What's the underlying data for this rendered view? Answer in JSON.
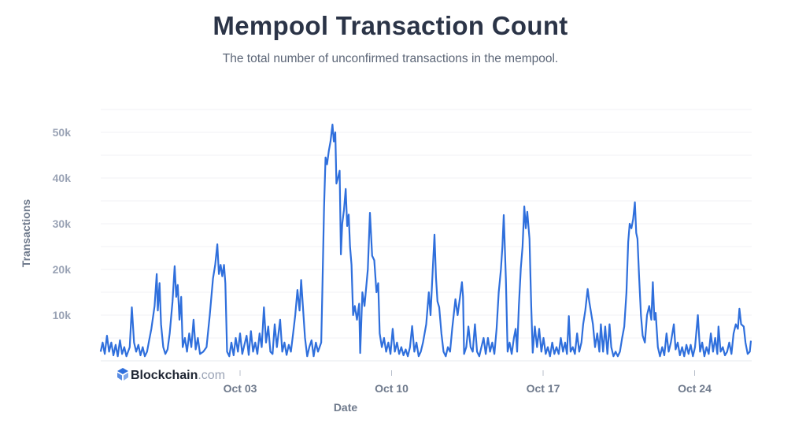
{
  "chart_data": {
    "type": "line",
    "title": "Mempool Transaction Count",
    "subtitle": "The total number of unconfirmed transactions in the mempool.",
    "xlabel": "Date",
    "ylabel": "Transactions",
    "x_unit": "day of October (Sep 30 = 0)",
    "y_multiplier": 1000,
    "ylim": [
      0,
      55000
    ],
    "grid": true,
    "yticks": [
      {
        "value": 10000,
        "label": "10k"
      },
      {
        "value": 20000,
        "label": "20k"
      },
      {
        "value": 30000,
        "label": "30k"
      },
      {
        "value": 40000,
        "label": "40k"
      },
      {
        "value": 50000,
        "label": "50k"
      }
    ],
    "xticks": [
      {
        "value": 3,
        "label": "Oct 03"
      },
      {
        "value": 10,
        "label": "Oct 10"
      },
      {
        "value": 17,
        "label": "Oct 17"
      },
      {
        "value": 24,
        "label": "Oct 24"
      }
    ],
    "series_color": "#2f6fdc",
    "watermark": {
      "brand": "Blockchain",
      "suffix": ".com"
    },
    "points": [
      [
        -3.44,
        2
      ],
      [
        -3.35,
        4
      ],
      [
        -3.25,
        1.5
      ],
      [
        -3.15,
        5.5
      ],
      [
        -3.05,
        2
      ],
      [
        -2.95,
        4
      ],
      [
        -2.85,
        1.2
      ],
      [
        -2.75,
        3.5
      ],
      [
        -2.65,
        1
      ],
      [
        -2.55,
        4.5
      ],
      [
        -2.45,
        1.5
      ],
      [
        -2.35,
        3
      ],
      [
        -2.25,
        1
      ],
      [
        -2.1,
        3
      ],
      [
        -2.0,
        11.7
      ],
      [
        -1.9,
        4
      ],
      [
        -1.8,
        2
      ],
      [
        -1.7,
        3.5
      ],
      [
        -1.6,
        1.2
      ],
      [
        -1.5,
        3
      ],
      [
        -1.4,
        1
      ],
      [
        -1.3,
        2
      ],
      [
        -1.2,
        4.5
      ],
      [
        -1.1,
        7
      ],
      [
        -0.95,
        12
      ],
      [
        -0.85,
        19
      ],
      [
        -0.8,
        11
      ],
      [
        -0.72,
        17
      ],
      [
        -0.65,
        8
      ],
      [
        -0.55,
        3
      ],
      [
        -0.45,
        1.5
      ],
      [
        -0.35,
        2.5
      ],
      [
        -0.25,
        6
      ],
      [
        -0.12,
        13
      ],
      [
        -0.02,
        20.7
      ],
      [
        0.05,
        14
      ],
      [
        0.12,
        16.6
      ],
      [
        0.2,
        9
      ],
      [
        0.28,
        14
      ],
      [
        0.35,
        3
      ],
      [
        0.45,
        5
      ],
      [
        0.55,
        2
      ],
      [
        0.65,
        6
      ],
      [
        0.75,
        3
      ],
      [
        0.85,
        9
      ],
      [
        0.95,
        2.5
      ],
      [
        1.05,
        5
      ],
      [
        1.15,
        1.5
      ],
      [
        1.3,
        2
      ],
      [
        1.45,
        3
      ],
      [
        1.6,
        10
      ],
      [
        1.75,
        18
      ],
      [
        1.85,
        21
      ],
      [
        1.95,
        25.5
      ],
      [
        2.02,
        19
      ],
      [
        2.1,
        21
      ],
      [
        2.18,
        18.5
      ],
      [
        2.26,
        21
      ],
      [
        2.32,
        17
      ],
      [
        2.4,
        2
      ],
      [
        2.5,
        1
      ],
      [
        2.6,
        4
      ],
      [
        2.7,
        1.2
      ],
      [
        2.8,
        5
      ],
      [
        2.9,
        2
      ],
      [
        3.0,
        6
      ],
      [
        3.1,
        1.5
      ],
      [
        3.2,
        3.5
      ],
      [
        3.3,
        5.5
      ],
      [
        3.4,
        1.3
      ],
      [
        3.5,
        6.5
      ],
      [
        3.6,
        2
      ],
      [
        3.7,
        4
      ],
      [
        3.8,
        1.5
      ],
      [
        3.9,
        6
      ],
      [
        4.0,
        3
      ],
      [
        4.1,
        11.7
      ],
      [
        4.2,
        4
      ],
      [
        4.3,
        7.5
      ],
      [
        4.4,
        2
      ],
      [
        4.5,
        1.5
      ],
      [
        4.6,
        8
      ],
      [
        4.7,
        3
      ],
      [
        4.85,
        9
      ],
      [
        4.95,
        2
      ],
      [
        5.05,
        4
      ],
      [
        5.15,
        1.3
      ],
      [
        5.25,
        3.5
      ],
      [
        5.35,
        2
      ],
      [
        5.45,
        6
      ],
      [
        5.55,
        10
      ],
      [
        5.65,
        15.5
      ],
      [
        5.75,
        11
      ],
      [
        5.82,
        17.7
      ],
      [
        5.9,
        12
      ],
      [
        6.0,
        5
      ],
      [
        6.1,
        1
      ],
      [
        6.2,
        3
      ],
      [
        6.3,
        4.5
      ],
      [
        6.4,
        1
      ],
      [
        6.5,
        4
      ],
      [
        6.6,
        2
      ],
      [
        6.75,
        4
      ],
      [
        6.8,
        15
      ],
      [
        6.88,
        33.6
      ],
      [
        6.95,
        44.5
      ],
      [
        7.02,
        43
      ],
      [
        7.1,
        46
      ],
      [
        7.18,
        48
      ],
      [
        7.27,
        51.7
      ],
      [
        7.33,
        48
      ],
      [
        7.4,
        50
      ],
      [
        7.45,
        38.8
      ],
      [
        7.52,
        40
      ],
      [
        7.6,
        41.6
      ],
      [
        7.66,
        23.3
      ],
      [
        7.72,
        30
      ],
      [
        7.8,
        33
      ],
      [
        7.88,
        37.6
      ],
      [
        7.95,
        29.5
      ],
      [
        8.02,
        32
      ],
      [
        8.08,
        25
      ],
      [
        8.15,
        21
      ],
      [
        8.22,
        10
      ],
      [
        8.3,
        12
      ],
      [
        8.4,
        9
      ],
      [
        8.5,
        12.5
      ],
      [
        8.55,
        1.7
      ],
      [
        8.65,
        15
      ],
      [
        8.75,
        12
      ],
      [
        8.9,
        20
      ],
      [
        9.0,
        32.4
      ],
      [
        9.1,
        23
      ],
      [
        9.2,
        22
      ],
      [
        9.3,
        15
      ],
      [
        9.38,
        17
      ],
      [
        9.45,
        6
      ],
      [
        9.55,
        3
      ],
      [
        9.65,
        5
      ],
      [
        9.75,
        2
      ],
      [
        9.85,
        4
      ],
      [
        9.95,
        1.5
      ],
      [
        10.05,
        7
      ],
      [
        10.15,
        2
      ],
      [
        10.25,
        4
      ],
      [
        10.35,
        1.5
      ],
      [
        10.45,
        3
      ],
      [
        10.55,
        1.2
      ],
      [
        10.65,
        2.5
      ],
      [
        10.75,
        1
      ],
      [
        10.85,
        3
      ],
      [
        10.95,
        7.6
      ],
      [
        11.05,
        2
      ],
      [
        11.15,
        4
      ],
      [
        11.25,
        1
      ],
      [
        11.35,
        2
      ],
      [
        11.45,
        4
      ],
      [
        11.6,
        8
      ],
      [
        11.72,
        15
      ],
      [
        11.8,
        10
      ],
      [
        11.9,
        20
      ],
      [
        11.98,
        27.6
      ],
      [
        12.05,
        18.3
      ],
      [
        12.12,
        13
      ],
      [
        12.2,
        11.7
      ],
      [
        12.3,
        6
      ],
      [
        12.4,
        2
      ],
      [
        12.5,
        1
      ],
      [
        12.6,
        3
      ],
      [
        12.7,
        2
      ],
      [
        12.8,
        7
      ],
      [
        12.95,
        13.5
      ],
      [
        13.05,
        10
      ],
      [
        13.25,
        17.2
      ],
      [
        13.3,
        14
      ],
      [
        13.35,
        1.5
      ],
      [
        13.45,
        3
      ],
      [
        13.55,
        7.5
      ],
      [
        13.65,
        3
      ],
      [
        13.75,
        2
      ],
      [
        13.85,
        8
      ],
      [
        13.95,
        2
      ],
      [
        14.05,
        1
      ],
      [
        14.15,
        3
      ],
      [
        14.25,
        5
      ],
      [
        14.35,
        1.5
      ],
      [
        14.45,
        5
      ],
      [
        14.55,
        2
      ],
      [
        14.65,
        4
      ],
      [
        14.75,
        1.5
      ],
      [
        14.85,
        7
      ],
      [
        14.95,
        15
      ],
      [
        15.05,
        20
      ],
      [
        15.12,
        25
      ],
      [
        15.18,
        31.9
      ],
      [
        15.28,
        18
      ],
      [
        15.36,
        2
      ],
      [
        15.45,
        4
      ],
      [
        15.55,
        1.5
      ],
      [
        15.65,
        5
      ],
      [
        15.73,
        7
      ],
      [
        15.8,
        2
      ],
      [
        15.88,
        12
      ],
      [
        15.97,
        20.3
      ],
      [
        16.05,
        25
      ],
      [
        16.13,
        33.8
      ],
      [
        16.2,
        29
      ],
      [
        16.27,
        32.6
      ],
      [
        16.33,
        29
      ],
      [
        16.37,
        26.7
      ],
      [
        16.45,
        12
      ],
      [
        16.52,
        1.8
      ],
      [
        16.62,
        7.5
      ],
      [
        16.72,
        3
      ],
      [
        16.82,
        7
      ],
      [
        16.92,
        2
      ],
      [
        17.02,
        5
      ],
      [
        17.12,
        1.5
      ],
      [
        17.22,
        3
      ],
      [
        17.32,
        1
      ],
      [
        17.42,
        4
      ],
      [
        17.52,
        1.5
      ],
      [
        17.62,
        3
      ],
      [
        17.72,
        1.5
      ],
      [
        17.82,
        5
      ],
      [
        17.92,
        2
      ],
      [
        18.02,
        4
      ],
      [
        18.1,
        1.5
      ],
      [
        18.19,
        9.8
      ],
      [
        18.27,
        2
      ],
      [
        18.37,
        3
      ],
      [
        18.47,
        1.5
      ],
      [
        18.57,
        6
      ],
      [
        18.67,
        2
      ],
      [
        18.77,
        4
      ],
      [
        18.85,
        8
      ],
      [
        18.95,
        11
      ],
      [
        19.06,
        15.7
      ],
      [
        19.13,
        13
      ],
      [
        19.2,
        11
      ],
      [
        19.3,
        8
      ],
      [
        19.4,
        3
      ],
      [
        19.5,
        6
      ],
      [
        19.6,
        2
      ],
      [
        19.67,
        8
      ],
      [
        19.77,
        2
      ],
      [
        19.87,
        7.5
      ],
      [
        19.97,
        1.5
      ],
      [
        20.07,
        8
      ],
      [
        20.15,
        3
      ],
      [
        20.25,
        1
      ],
      [
        20.35,
        2
      ],
      [
        20.45,
        1
      ],
      [
        20.55,
        2
      ],
      [
        20.65,
        5
      ],
      [
        20.75,
        7.5
      ],
      [
        20.85,
        15
      ],
      [
        20.93,
        26
      ],
      [
        21.0,
        30
      ],
      [
        21.08,
        29
      ],
      [
        21.16,
        31
      ],
      [
        21.24,
        34.7
      ],
      [
        21.3,
        28
      ],
      [
        21.36,
        26.7
      ],
      [
        21.43,
        19
      ],
      [
        21.52,
        10
      ],
      [
        21.6,
        5.5
      ],
      [
        21.7,
        4
      ],
      [
        21.8,
        10
      ],
      [
        21.9,
        12
      ],
      [
        22.0,
        9
      ],
      [
        22.07,
        17.2
      ],
      [
        22.14,
        9
      ],
      [
        22.2,
        10.5
      ],
      [
        22.3,
        3
      ],
      [
        22.4,
        1
      ],
      [
        22.5,
        3
      ],
      [
        22.6,
        1.2
      ],
      [
        22.7,
        6
      ],
      [
        22.8,
        2
      ],
      [
        22.9,
        4
      ],
      [
        23.04,
        8
      ],
      [
        23.12,
        2.5
      ],
      [
        23.22,
        4
      ],
      [
        23.32,
        1.2
      ],
      [
        23.42,
        3
      ],
      [
        23.52,
        1
      ],
      [
        23.62,
        3.5
      ],
      [
        23.72,
        1.5
      ],
      [
        23.82,
        3.5
      ],
      [
        23.92,
        1
      ],
      [
        24.02,
        3
      ],
      [
        24.15,
        10
      ],
      [
        24.25,
        2
      ],
      [
        24.35,
        4
      ],
      [
        24.45,
        1
      ],
      [
        24.55,
        3
      ],
      [
        24.65,
        1.5
      ],
      [
        24.75,
        6
      ],
      [
        24.85,
        2
      ],
      [
        24.95,
        5
      ],
      [
        25.05,
        1.5
      ],
      [
        25.1,
        7.5
      ],
      [
        25.2,
        2
      ],
      [
        25.3,
        3
      ],
      [
        25.4,
        1.2
      ],
      [
        25.5,
        2
      ],
      [
        25.6,
        4
      ],
      [
        25.7,
        1.5
      ],
      [
        25.8,
        6
      ],
      [
        25.9,
        8
      ],
      [
        26.0,
        7
      ],
      [
        26.07,
        11.4
      ],
      [
        26.15,
        8
      ],
      [
        26.27,
        7.5
      ],
      [
        26.35,
        4
      ],
      [
        26.45,
        1.5
      ],
      [
        26.55,
        2
      ],
      [
        26.6,
        4.4
      ]
    ]
  }
}
